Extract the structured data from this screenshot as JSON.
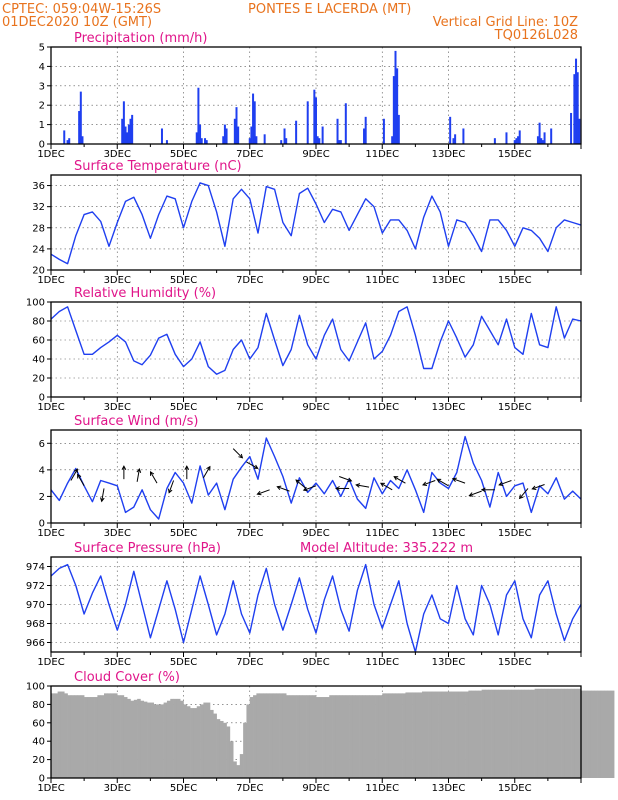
{
  "header": {
    "line1_left": "CPTEC:   059:04W-15:26S",
    "line1_right": "PONTES E LACERDA (MT)",
    "line2_left": "01DEC2020 10Z (GMT)",
    "line2_right": "Vertical Grid Line: 10Z",
    "line3_right": "TQ0126L028"
  },
  "colors": {
    "header": "#e8731e",
    "panel_title": "#e0158a",
    "series": "#1f3ff0",
    "cloud": "#a9a9a9"
  },
  "x_tick_labels": [
    "1DEC",
    "3DEC",
    "5DEC",
    "7DEC",
    "9DEC",
    "11DEC",
    "13DEC",
    "15DEC"
  ],
  "chart_data": [
    {
      "type": "bar",
      "title": "Precipitation (mm/h)",
      "ylim": [
        0,
        5
      ],
      "yticks": [
        0,
        1,
        2,
        3,
        4,
        5
      ],
      "grid": true,
      "day_offset": [
        0.4,
        0.5,
        0.55,
        0.85,
        0.9,
        0.95,
        2.15,
        2.2,
        2.25,
        2.3,
        2.35,
        2.4,
        2.45,
        3.35,
        3.5,
        4.4,
        4.45,
        4.5,
        4.55,
        4.65,
        4.7,
        5.2,
        5.25,
        5.3,
        5.55,
        5.6,
        5.65,
        6.0,
        6.05,
        6.1,
        6.15,
        6.2,
        6.45,
        6.95,
        7.05,
        7.1,
        7.4,
        7.75,
        7.95,
        8.0,
        8.05,
        8.1,
        8.2,
        8.65,
        8.7,
        8.75,
        8.9,
        9.45,
        9.5,
        10.05,
        10.3,
        10.35,
        10.4,
        10.45,
        10.5,
        12.05,
        12.15,
        12.2,
        12.45,
        13.4,
        13.75,
        14.0,
        14.05,
        14.1,
        14.15,
        14.7,
        14.75,
        14.8,
        14.85,
        14.9,
        15.1,
        15.7,
        15.8,
        15.85,
        15.9,
        15.95
      ],
      "values": [
        0.7,
        0.2,
        0.3,
        1.7,
        2.7,
        0.4,
        1.3,
        2.2,
        0.9,
        0.6,
        1.0,
        1.3,
        1.5,
        0.8,
        0.2,
        0.6,
        2.9,
        1.0,
        0.3,
        0.3,
        0.2,
        0.4,
        1.0,
        0.8,
        1.3,
        1.9,
        0.9,
        0.3,
        0.9,
        2.6,
        2.2,
        0.4,
        0.5,
        0.2,
        0.8,
        0.3,
        1.2,
        2.2,
        2.8,
        2.4,
        0.4,
        0.3,
        0.9,
        1.3,
        0.2,
        0.2,
        2.1,
        0.8,
        1.4,
        1.3,
        0.4,
        3.5,
        4.8,
        3.9,
        1.5,
        1.4,
        0.3,
        0.5,
        0.8,
        0.3,
        0.6,
        0.2,
        0.3,
        0.4,
        0.7,
        0.4,
        1.1,
        0.3,
        0.2,
        0.6,
        0.8,
        1.6,
        3.6,
        4.4,
        3.7,
        1.3
      ]
    },
    {
      "type": "line",
      "title": "Surface Temperature (nC)",
      "ylim": [
        20,
        38
      ],
      "yticks": [
        20,
        24,
        28,
        32,
        36
      ],
      "grid": true,
      "x": [
        0,
        0.25,
        0.5,
        0.75,
        1.0,
        1.25,
        1.5,
        1.75,
        2.0,
        2.25,
        2.5,
        2.75,
        3.0,
        3.25,
        3.5,
        3.75,
        4.0,
        4.25,
        4.5,
        4.75,
        5.0,
        5.25,
        5.5,
        5.75,
        6.0,
        6.25,
        6.5,
        6.75,
        7.0,
        7.25,
        7.5,
        7.75,
        8.0,
        8.25,
        8.5,
        8.75,
        9.0,
        9.25,
        9.5,
        9.75,
        10.0,
        10.25,
        10.5,
        10.75,
        11.0,
        11.25,
        11.5,
        11.75,
        12.0,
        12.25,
        12.5,
        12.75,
        13.0,
        13.25,
        13.5,
        13.75,
        14.0,
        14.25,
        14.5,
        14.75,
        15.0,
        15.25,
        15.5,
        15.75,
        16.0
      ],
      "values": [
        23.0,
        22.0,
        21.2,
        26.5,
        30.5,
        31.0,
        29.2,
        24.5,
        29.0,
        33.0,
        33.8,
        30.5,
        26.0,
        30.5,
        34.0,
        33.5,
        28.0,
        33.0,
        36.5,
        36.0,
        31.0,
        24.5,
        33.5,
        35.3,
        33.5,
        27.0,
        35.8,
        35.3,
        29.0,
        26.5,
        34.5,
        35.5,
        32.5,
        29.0,
        31.5,
        31.0,
        27.5,
        30.5,
        33.5,
        32.0,
        27.0,
        29.5,
        29.5,
        27.5,
        24.0,
        30.0,
        34.0,
        31.0,
        24.5,
        29.5,
        29.0,
        26.5,
        23.5,
        29.5,
        29.5,
        27.5,
        24.5,
        28.0,
        27.5,
        26.0,
        23.5,
        28.0,
        29.5,
        29.0,
        28.5
      ]
    },
    {
      "type": "line",
      "title": "Relative Humidity (%)",
      "ylim": [
        0,
        100
      ],
      "yticks": [
        0,
        20,
        40,
        60,
        80,
        100
      ],
      "grid": true,
      "x": [
        0,
        0.25,
        0.5,
        0.75,
        1.0,
        1.25,
        1.5,
        1.75,
        2.0,
        2.25,
        2.5,
        2.75,
        3.0,
        3.25,
        3.5,
        3.75,
        4.0,
        4.25,
        4.5,
        4.75,
        5.0,
        5.25,
        5.5,
        5.75,
        6.0,
        6.25,
        6.5,
        6.75,
        7.0,
        7.25,
        7.5,
        7.75,
        8.0,
        8.25,
        8.5,
        8.75,
        9.0,
        9.25,
        9.5,
        9.75,
        10.0,
        10.25,
        10.5,
        10.75,
        11.0,
        11.25,
        11.5,
        11.75,
        12.0,
        12.25,
        12.5,
        12.75,
        13.0,
        13.25,
        13.5,
        13.75,
        14.0,
        14.25,
        14.5,
        14.75,
        15.0,
        15.25,
        15.5,
        15.75,
        16.0
      ],
      "values": [
        82,
        90,
        95,
        70,
        45,
        45,
        52,
        58,
        65,
        58,
        38,
        34,
        44,
        62,
        66,
        45,
        32,
        40,
        58,
        32,
        24,
        28,
        50,
        60,
        40,
        52,
        88,
        60,
        33,
        50,
        86,
        55,
        40,
        65,
        82,
        50,
        38,
        58,
        78,
        40,
        48,
        65,
        90,
        95,
        65,
        30,
        30,
        58,
        80,
        62,
        42,
        55,
        85,
        70,
        55,
        82,
        52,
        45,
        88,
        55,
        52,
        95,
        62,
        82,
        80
      ]
    },
    {
      "type": "line",
      "title": "Surface Wind (m/s)",
      "ylim": [
        0,
        7
      ],
      "yticks": [
        0,
        2,
        4,
        6
      ],
      "grid": true,
      "x": [
        0,
        0.25,
        0.5,
        0.75,
        1.0,
        1.25,
        1.5,
        1.75,
        2.0,
        2.25,
        2.5,
        2.75,
        3.0,
        3.25,
        3.5,
        3.75,
        4.0,
        4.25,
        4.5,
        4.75,
        5.0,
        5.25,
        5.5,
        5.75,
        6.0,
        6.25,
        6.5,
        6.75,
        7.0,
        7.25,
        7.5,
        7.75,
        8.0,
        8.25,
        8.5,
        8.75,
        9.0,
        9.25,
        9.5,
        9.75,
        10.0,
        10.25,
        10.5,
        10.75,
        11.0,
        11.25,
        11.5,
        11.75,
        12.0,
        12.25,
        12.5,
        12.75,
        13.0,
        13.25,
        13.5,
        13.75,
        14.0,
        14.25,
        14.5,
        14.75,
        15.0,
        15.25,
        15.5,
        15.75,
        16.0
      ],
      "values": [
        2.5,
        1.7,
        3.0,
        4.1,
        2.8,
        1.6,
        3.2,
        3.0,
        2.8,
        0.8,
        1.2,
        2.5,
        1.0,
        0.3,
        2.6,
        3.8,
        3.0,
        1.5,
        4.3,
        2.1,
        3.0,
        1.0,
        3.3,
        4.2,
        5.0,
        3.3,
        6.4,
        5.0,
        3.5,
        1.5,
        3.4,
        2.3,
        3.0,
        2.2,
        3.2,
        2.0,
        3.3,
        1.8,
        1.1,
        3.4,
        2.2,
        3.2,
        2.6,
        4.0,
        2.5,
        0.8,
        3.8,
        3.0,
        2.6,
        3.8,
        6.5,
        4.5,
        3.2,
        1.2,
        3.8,
        2.0,
        2.8,
        3.0,
        0.8,
        2.8,
        2.2,
        3.4,
        1.8,
        2.4,
        1.8
      ],
      "arrows": [
        {
          "day": 0.6,
          "speed": 3.2,
          "dir_deg": 60
        },
        {
          "day": 1.0,
          "speed": 2.8,
          "dir_deg": 120
        },
        {
          "day": 1.6,
          "speed": 2.6,
          "dir_deg": 260
        },
        {
          "day": 2.2,
          "speed": 3.3,
          "dir_deg": 90
        },
        {
          "day": 2.6,
          "speed": 3.1,
          "dir_deg": 80
        },
        {
          "day": 3.2,
          "speed": 3.0,
          "dir_deg": 120
        },
        {
          "day": 3.7,
          "speed": 3.2,
          "dir_deg": 250
        },
        {
          "day": 4.1,
          "speed": 3.3,
          "dir_deg": 90
        },
        {
          "day": 4.6,
          "speed": 3.4,
          "dir_deg": 60
        },
        {
          "day": 5.5,
          "speed": 5.6,
          "dir_deg": 315
        },
        {
          "day": 5.9,
          "speed": 4.6,
          "dir_deg": 330
        },
        {
          "day": 6.6,
          "speed": 2.5,
          "dir_deg": 200
        },
        {
          "day": 7.2,
          "speed": 2.4,
          "dir_deg": 160
        },
        {
          "day": 7.7,
          "speed": 2.6,
          "dir_deg": 140
        },
        {
          "day": 8.0,
          "speed": 2.8,
          "dir_deg": 200
        },
        {
          "day": 8.7,
          "speed": 3.5,
          "dir_deg": 340
        },
        {
          "day": 9.0,
          "speed": 2.6,
          "dir_deg": 180
        },
        {
          "day": 9.6,
          "speed": 2.7,
          "dir_deg": 170
        },
        {
          "day": 10.3,
          "speed": 2.5,
          "dir_deg": 150
        },
        {
          "day": 10.7,
          "speed": 3.0,
          "dir_deg": 150
        },
        {
          "day": 11.6,
          "speed": 3.2,
          "dir_deg": 200
        },
        {
          "day": 12.0,
          "speed": 2.8,
          "dir_deg": 150
        },
        {
          "day": 12.5,
          "speed": 3.0,
          "dir_deg": 160
        },
        {
          "day": 13.0,
          "speed": 2.4,
          "dir_deg": 200
        },
        {
          "day": 13.4,
          "speed": 2.5,
          "dir_deg": 180
        },
        {
          "day": 13.9,
          "speed": 3.2,
          "dir_deg": 200
        },
        {
          "day": 14.4,
          "speed": 2.6,
          "dir_deg": 230
        },
        {
          "day": 14.9,
          "speed": 2.9,
          "dir_deg": 200
        }
      ]
    },
    {
      "type": "line",
      "title": "Surface Pressure (hPa)",
      "annotation": "Model Altitude: 335.222 m",
      "ylim": [
        965,
        975
      ],
      "yticks": [
        966,
        968,
        970,
        972,
        974
      ],
      "grid": true,
      "x": [
        0,
        0.25,
        0.5,
        0.75,
        1.0,
        1.25,
        1.5,
        1.75,
        2.0,
        2.25,
        2.5,
        2.75,
        3.0,
        3.25,
        3.5,
        3.75,
        4.0,
        4.25,
        4.5,
        4.75,
        5.0,
        5.25,
        5.5,
        5.75,
        6.0,
        6.25,
        6.5,
        6.75,
        7.0,
        7.25,
        7.5,
        7.75,
        8.0,
        8.25,
        8.5,
        8.75,
        9.0,
        9.25,
        9.5,
        9.75,
        10.0,
        10.25,
        10.5,
        10.75,
        11.0,
        11.25,
        11.5,
        11.75,
        12.0,
        12.25,
        12.5,
        12.75,
        13.0,
        13.25,
        13.5,
        13.75,
        14.0,
        14.25,
        14.5,
        14.75,
        15.0,
        15.25,
        15.5,
        15.75,
        16.0
      ],
      "values": [
        973.0,
        973.8,
        974.2,
        972.0,
        969.0,
        971.2,
        973.0,
        970.0,
        967.3,
        970.0,
        973.5,
        970.0,
        966.5,
        969.5,
        972.5,
        969.5,
        966.0,
        969.5,
        973.0,
        970.0,
        966.8,
        969.0,
        972.5,
        969.0,
        967.0,
        971.0,
        973.8,
        970.0,
        967.3,
        970.0,
        972.8,
        969.5,
        967.0,
        970.5,
        973.0,
        969.5,
        967.2,
        971.5,
        974.2,
        970.0,
        967.5,
        970.0,
        972.5,
        968.0,
        965.0,
        969.0,
        971.0,
        968.5,
        968.0,
        972.0,
        968.5,
        966.8,
        972.0,
        970.0,
        966.8,
        971.0,
        972.5,
        968.5,
        966.5,
        971.0,
        972.5,
        969.0,
        966.2,
        968.5,
        970.0
      ]
    },
    {
      "type": "bar",
      "title": "Cloud Cover (%)",
      "ylim": [
        0,
        100
      ],
      "yticks": [
        0,
        20,
        40,
        60,
        80,
        100
      ],
      "grid": true,
      "x_step_days": 0.1,
      "values": [
        92,
        92,
        94,
        94,
        92,
        90,
        90,
        90,
        90,
        90,
        88,
        88,
        88,
        88,
        90,
        90,
        92,
        92,
        92,
        92,
        90,
        90,
        88,
        86,
        84,
        85,
        86,
        84,
        83,
        82,
        82,
        80,
        80,
        80,
        82,
        84,
        86,
        86,
        86,
        84,
        80,
        78,
        76,
        76,
        78,
        80,
        82,
        82,
        74,
        70,
        64,
        62,
        60,
        56,
        40,
        18,
        14,
        26,
        60,
        80,
        88,
        90,
        92,
        92,
        92,
        92,
        92,
        92,
        92,
        92,
        92,
        90,
        90,
        90,
        90,
        90,
        90,
        90,
        90,
        90,
        88,
        88,
        88,
        88,
        90,
        90,
        90,
        90,
        90,
        90,
        90,
        90,
        90,
        90,
        90,
        90,
        90,
        90,
        90,
        90,
        92,
        92,
        92,
        92,
        92,
        92,
        92,
        93,
        93,
        93,
        93,
        93,
        94,
        94,
        94,
        94,
        94,
        94,
        94,
        94,
        94,
        94,
        94,
        94,
        94,
        94,
        95,
        95,
        95,
        95,
        96,
        96,
        96,
        96,
        96,
        96,
        96,
        96,
        96,
        96,
        96,
        96,
        96,
        96,
        96,
        96,
        97,
        97,
        97,
        97,
        97,
        97,
        97,
        97,
        97,
        97,
        97,
        97,
        97,
        97,
        95,
        95,
        95,
        95,
        95,
        95,
        95,
        95,
        95,
        95
      ]
    }
  ]
}
